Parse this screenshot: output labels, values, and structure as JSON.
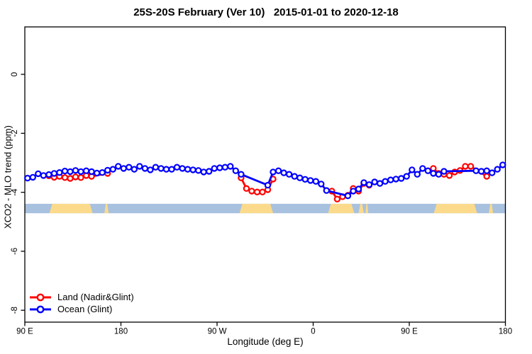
{
  "title": "25S-20S February (Ver 10)   2015-01-01 to 2020-12-18",
  "chart_data": {
    "type": "line",
    "title": "25S-20S February (Ver 10)   2015-01-01 to 2020-12-18",
    "xlabel": "Longitude (deg E)",
    "ylabel": "XCO2 - MLO trend (ppm)",
    "xlim": [
      90,
      540
    ],
    "ylim": [
      -8.4,
      1.6
    ],
    "grid": false,
    "legend_position": "bottom-left",
    "xticks": [
      {
        "pos": 90,
        "label": "90 E"
      },
      {
        "pos": 180,
        "label": "180"
      },
      {
        "pos": 270,
        "label": "90 W"
      },
      {
        "pos": 360,
        "label": "0"
      },
      {
        "pos": 450,
        "label": "90 E"
      },
      {
        "pos": 540,
        "label": "180"
      }
    ],
    "yticks": [
      {
        "pos": 0,
        "label": "0"
      },
      {
        "pos": -2,
        "label": "-2"
      },
      {
        "pos": -4,
        "label": "-4"
      },
      {
        "pos": -6,
        "label": "-6"
      },
      {
        "pos": -8,
        "label": "-8"
      }
    ],
    "x_start_deg": 92.5,
    "x_step_deg": 5,
    "series": [
      {
        "name": "Land (Nadir&Glint)",
        "color": "#ff0000",
        "values": [
          null,
          null,
          null,
          null,
          -3.44,
          -3.49,
          -3.46,
          -3.5,
          -3.53,
          -3.48,
          -3.5,
          -3.43,
          -3.46,
          null,
          null,
          -3.36,
          null,
          null,
          null,
          null,
          null,
          null,
          null,
          null,
          null,
          null,
          null,
          null,
          null,
          null,
          null,
          null,
          null,
          null,
          null,
          null,
          null,
          null,
          null,
          null,
          -3.51,
          -3.87,
          -3.96,
          -3.99,
          -3.99,
          -3.91,
          -3.55,
          null,
          null,
          null,
          null,
          null,
          null,
          null,
          null,
          null,
          null,
          -3.96,
          -4.23,
          -4.15,
          -4.1,
          -3.87,
          -3.96,
          -3.7,
          -3.76,
          null,
          null,
          null,
          null,
          null,
          null,
          null,
          null,
          null,
          null,
          null,
          -3.19,
          -3.36,
          -3.39,
          -3.43,
          -3.31,
          -3.26,
          -3.12,
          -3.12,
          null,
          null,
          -3.46,
          null,
          null,
          null
        ]
      },
      {
        "name": "Ocean (Glint)",
        "color": "#0000ff",
        "values": [
          -3.52,
          -3.49,
          -3.37,
          -3.43,
          -3.4,
          -3.36,
          -3.33,
          -3.28,
          -3.3,
          -3.26,
          -3.3,
          -3.27,
          -3.3,
          -3.35,
          -3.33,
          -3.25,
          -3.22,
          -3.12,
          -3.19,
          -3.15,
          -3.22,
          -3.12,
          -3.19,
          -3.24,
          -3.15,
          -3.19,
          -3.22,
          -3.22,
          -3.15,
          -3.19,
          -3.22,
          -3.24,
          -3.26,
          -3.31,
          -3.29,
          -3.19,
          -3.17,
          -3.15,
          -3.12,
          -3.27,
          -3.39,
          null,
          null,
          null,
          null,
          -3.76,
          -3.31,
          -3.27,
          -3.34,
          -3.39,
          -3.46,
          -3.51,
          -3.56,
          -3.6,
          -3.63,
          -3.72,
          -3.94,
          null,
          null,
          null,
          -4.12,
          -3.96,
          -3.89,
          -3.67,
          -3.74,
          -3.65,
          -3.7,
          -3.63,
          -3.58,
          -3.55,
          -3.53,
          -3.46,
          -3.24,
          -3.39,
          -3.19,
          -3.27,
          -3.36,
          -3.39,
          -3.29,
          null,
          null,
          null,
          null,
          null,
          -3.27,
          -3.29,
          -3.27,
          -3.34,
          -3.22,
          -3.07
        ]
      }
    ],
    "map_band": {
      "ocean_color": "#a8c1df",
      "land_color": "#fbda8c",
      "y_ppm": [
        -4.39,
        -4.71
      ],
      "land_segments_deg": [
        [
          113,
          153.5
        ],
        [
          164.5,
          168.5
        ],
        [
          291,
          322.5
        ],
        [
          374,
          398.5
        ],
        [
          402.5,
          407.5
        ],
        [
          409,
          411.5
        ],
        [
          473,
          513.5
        ],
        [
          524.5,
          528.5
        ]
      ]
    }
  }
}
